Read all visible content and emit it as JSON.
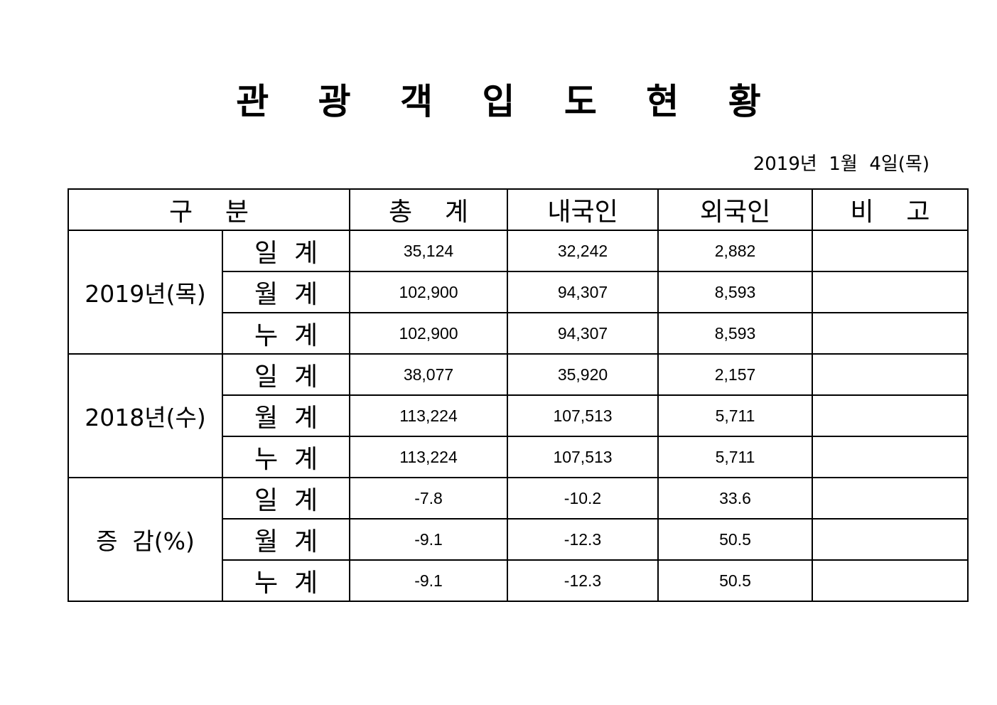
{
  "title": "관 광 객 입 도 현 황",
  "date": "2019년  1월  4일(목)",
  "table": {
    "headers": {
      "category": "구    분",
      "total": "총    계",
      "domestic": "내국인",
      "foreign": "외국인",
      "remarks": "비    고"
    },
    "groups": [
      {
        "label": "2019년(목)",
        "rows": [
          {
            "label": "일  계",
            "total": "35,124",
            "domestic": "32,242",
            "foreign": "2,882",
            "remarks": ""
          },
          {
            "label": "월  계",
            "total": "102,900",
            "domestic": "94,307",
            "foreign": "8,593",
            "remarks": ""
          },
          {
            "label": "누  계",
            "total": "102,900",
            "domestic": "94,307",
            "foreign": "8,593",
            "remarks": ""
          }
        ]
      },
      {
        "label": "2018년(수)",
        "rows": [
          {
            "label": "일  계",
            "total": "38,077",
            "domestic": "35,920",
            "foreign": "2,157",
            "remarks": ""
          },
          {
            "label": "월  계",
            "total": "113,224",
            "domestic": "107,513",
            "foreign": "5,711",
            "remarks": ""
          },
          {
            "label": "누  계",
            "total": "113,224",
            "domestic": "107,513",
            "foreign": "5,711",
            "remarks": ""
          }
        ]
      },
      {
        "label": "증  감(%)",
        "rows": [
          {
            "label": "일  계",
            "total": "-7.8",
            "domestic": "-10.2",
            "foreign": "33.6",
            "remarks": ""
          },
          {
            "label": "월  계",
            "total": "-9.1",
            "domestic": "-12.3",
            "foreign": "50.5",
            "remarks": ""
          },
          {
            "label": "누  계",
            "total": "-9.1",
            "domestic": "-12.3",
            "foreign": "50.5",
            "remarks": ""
          }
        ]
      }
    ]
  }
}
